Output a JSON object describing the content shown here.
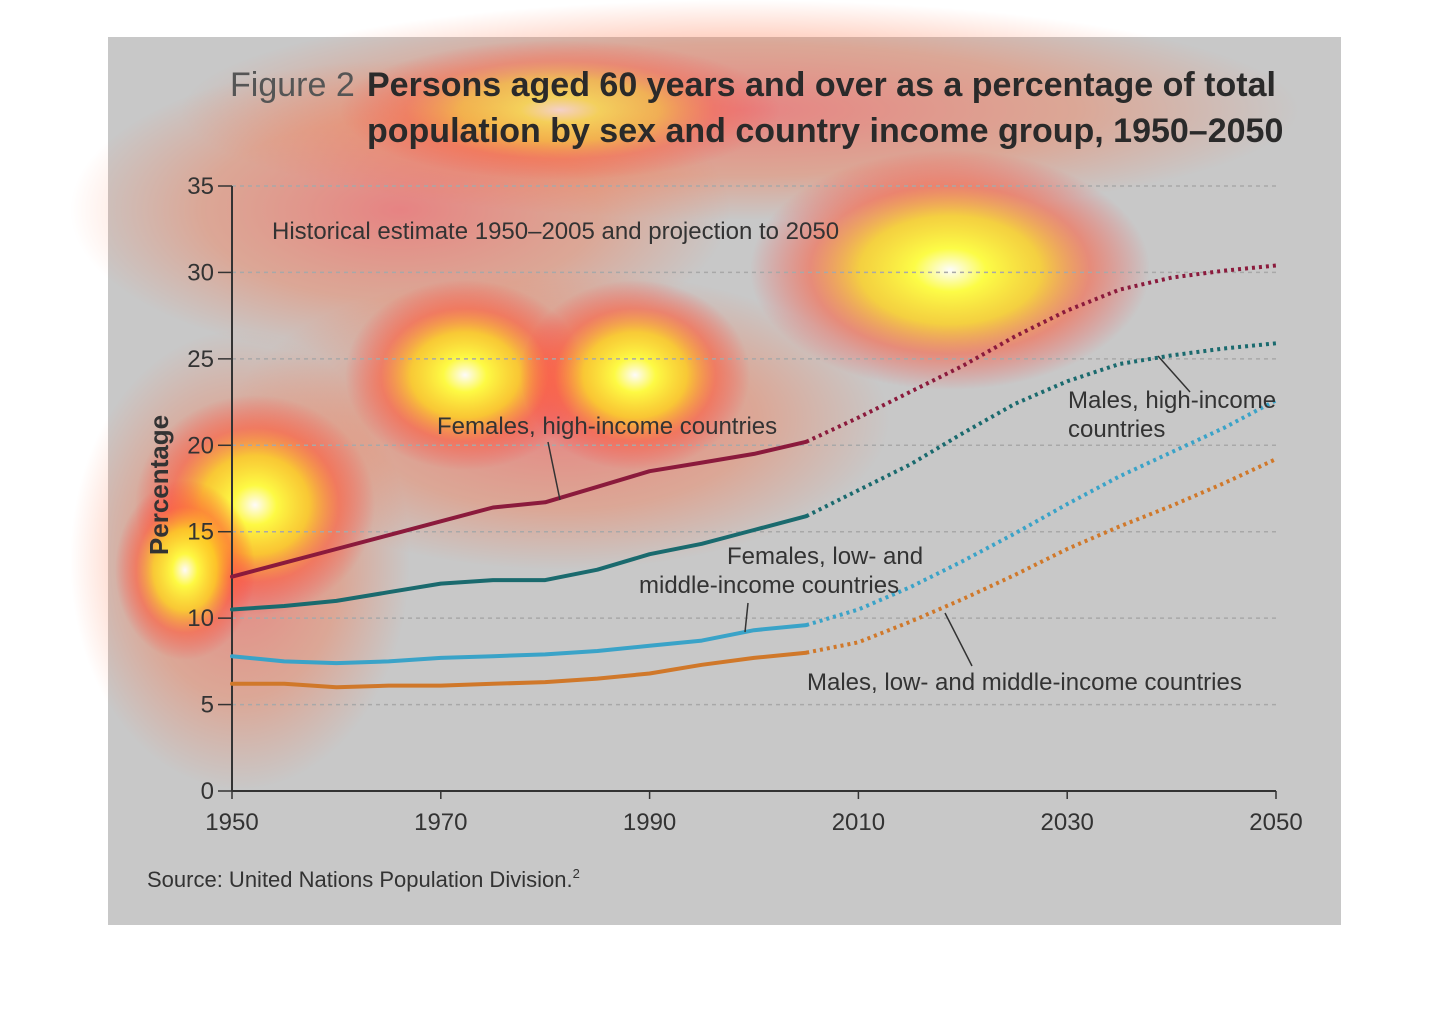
{
  "figure": {
    "label": "Figure 2",
    "title_line1": "Persons aged 60 years and over as a percentage of total",
    "title_line2": "population by sex and country income group, 1950–2050",
    "subtitle": "Historical estimate 1950–2005 and projection to 2050",
    "ylabel": "Percentage",
    "source": "Source: United Nations Population Division.",
    "source_sup": "2"
  },
  "annotations": {
    "females_high": "Females, high-income countries",
    "males_high_1": "Males, high-income",
    "males_high_2": "countries",
    "females_low_1": "Females, low- and",
    "females_low_2": "middle-income countries",
    "males_low": "Males, low- and middle-income countries"
  },
  "colors": {
    "background": "#c8c8c8",
    "females_high": "#8b1a3c",
    "males_high": "#1a6a6e",
    "females_low": "#3aa3c8",
    "males_low": "#d0782a",
    "gridline": "#a8a8a8",
    "axis": "#333333"
  },
  "chart_data": {
    "type": "line",
    "xlim": [
      1950,
      2050
    ],
    "ylim": [
      0,
      35
    ],
    "xticks": [
      1950,
      1970,
      1990,
      2010,
      2030,
      2050
    ],
    "yticks": [
      0,
      5,
      10,
      15,
      20,
      25,
      30,
      35
    ],
    "grid": true,
    "historical_until": 2005,
    "series": [
      {
        "name": "Females, high-income countries",
        "color": "#8b1a3c",
        "x": [
          1950,
          1955,
          1960,
          1965,
          1970,
          1975,
          1980,
          1985,
          1990,
          1995,
          2000,
          2005,
          2010,
          2015,
          2020,
          2025,
          2030,
          2035,
          2040,
          2045,
          2050
        ],
        "y": [
          12.4,
          13.2,
          14.0,
          14.8,
          15.6,
          16.4,
          16.7,
          17.6,
          18.5,
          19.0,
          19.5,
          20.2,
          21.6,
          23.1,
          24.6,
          26.3,
          27.8,
          29.0,
          29.7,
          30.1,
          30.4
        ]
      },
      {
        "name": "Males, high-income countries",
        "color": "#1a6a6e",
        "x": [
          1950,
          1955,
          1960,
          1965,
          1970,
          1975,
          1980,
          1985,
          1990,
          1995,
          2000,
          2005,
          2010,
          2015,
          2020,
          2025,
          2030,
          2035,
          2040,
          2045,
          2050
        ],
        "y": [
          10.5,
          10.7,
          11.0,
          11.5,
          12.0,
          12.2,
          12.2,
          12.8,
          13.7,
          14.3,
          15.1,
          15.9,
          17.4,
          18.9,
          20.7,
          22.4,
          23.7,
          24.7,
          25.2,
          25.6,
          25.9
        ]
      },
      {
        "name": "Females, low- and middle-income countries",
        "color": "#3aa3c8",
        "x": [
          1950,
          1955,
          1960,
          1965,
          1970,
          1975,
          1980,
          1985,
          1990,
          1995,
          2000,
          2005,
          2010,
          2015,
          2020,
          2025,
          2030,
          2035,
          2040,
          2045,
          2050
        ],
        "y": [
          7.8,
          7.5,
          7.4,
          7.5,
          7.7,
          7.8,
          7.9,
          8.1,
          8.4,
          8.7,
          9.3,
          9.6,
          10.5,
          11.8,
          13.3,
          14.9,
          16.6,
          18.2,
          19.6,
          21.0,
          22.6
        ]
      },
      {
        "name": "Males, low- and middle-income countries",
        "color": "#d0782a",
        "x": [
          1950,
          1955,
          1960,
          1965,
          1970,
          1975,
          1980,
          1985,
          1990,
          1995,
          2000,
          2005,
          2010,
          2015,
          2020,
          2025,
          2030,
          2035,
          2040,
          2045,
          2050
        ],
        "y": [
          6.2,
          6.2,
          6.0,
          6.1,
          6.1,
          6.2,
          6.3,
          6.5,
          6.8,
          7.3,
          7.7,
          8.0,
          8.6,
          9.8,
          11.1,
          12.5,
          14.0,
          15.3,
          16.5,
          17.8,
          19.2
        ]
      }
    ]
  }
}
